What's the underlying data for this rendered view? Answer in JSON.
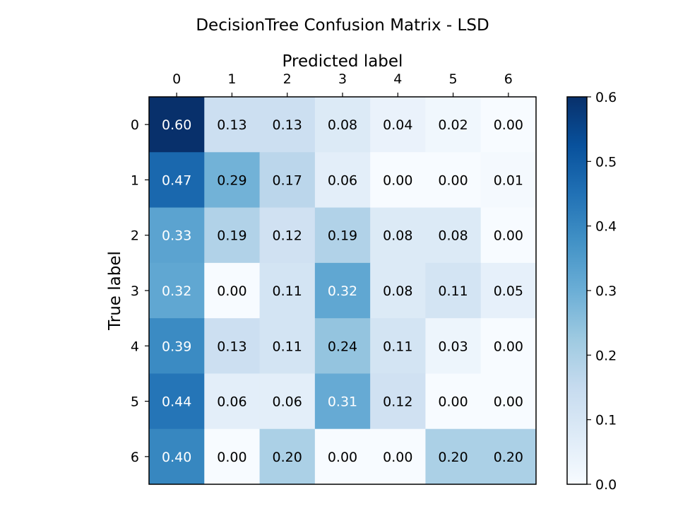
{
  "chart_data": {
    "type": "heatmap",
    "title": "DecisionTree Confusion Matrix - LSD",
    "xlabel": "Predicted label",
    "ylabel": "True label",
    "x_categories": [
      "0",
      "1",
      "2",
      "3",
      "4",
      "5",
      "6"
    ],
    "y_categories": [
      "0",
      "1",
      "2",
      "3",
      "4",
      "5",
      "6"
    ],
    "values": [
      [
        0.6,
        0.13,
        0.13,
        0.08,
        0.04,
        0.02,
        0.0
      ],
      [
        0.47,
        0.29,
        0.17,
        0.06,
        0.0,
        0.0,
        0.01
      ],
      [
        0.33,
        0.19,
        0.12,
        0.19,
        0.08,
        0.08,
        0.0
      ],
      [
        0.32,
        0.0,
        0.11,
        0.32,
        0.08,
        0.11,
        0.05
      ],
      [
        0.39,
        0.13,
        0.11,
        0.24,
        0.11,
        0.03,
        0.0
      ],
      [
        0.44,
        0.06,
        0.06,
        0.31,
        0.12,
        0.0,
        0.0
      ],
      [
        0.4,
        0.0,
        0.2,
        0.0,
        0.0,
        0.2,
        0.2
      ]
    ],
    "value_format": "0.00",
    "colormap": "Blues",
    "colorbar": {
      "range": [
        0.0,
        0.6
      ],
      "ticks": [
        "0.0",
        "0.1",
        "0.2",
        "0.3",
        "0.4",
        "0.5",
        "0.6"
      ]
    },
    "x_axis_position": "top",
    "grid": false,
    "colors": {
      "low": "#f7fbff",
      "high": "#08306b",
      "text_dark": "#000000",
      "text_light": "#ffffff"
    }
  }
}
